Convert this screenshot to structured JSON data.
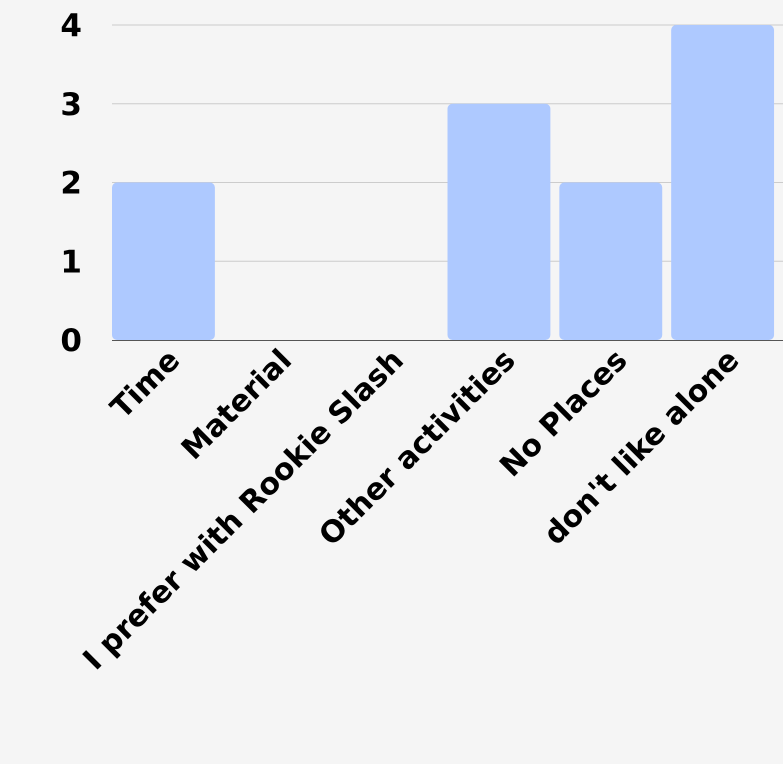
{
  "colors": {
    "background": "#f5f5f5",
    "bar": "#aec9ff",
    "grid": "#cccccc",
    "axis": "#555555",
    "text": "#000000"
  },
  "chart_data": {
    "type": "bar",
    "title": "",
    "xlabel": "",
    "ylabel": "",
    "categories": [
      "Time",
      "Material",
      "I prefer with Rookie Slash",
      "Other activities",
      "No Places",
      "don't like alone"
    ],
    "values": [
      2,
      0,
      0,
      3,
      2,
      4
    ],
    "ylim": [
      0,
      4
    ],
    "yticks": [
      "0",
      "1",
      "2",
      "3",
      "4"
    ],
    "grid": true,
    "legend": "none"
  }
}
